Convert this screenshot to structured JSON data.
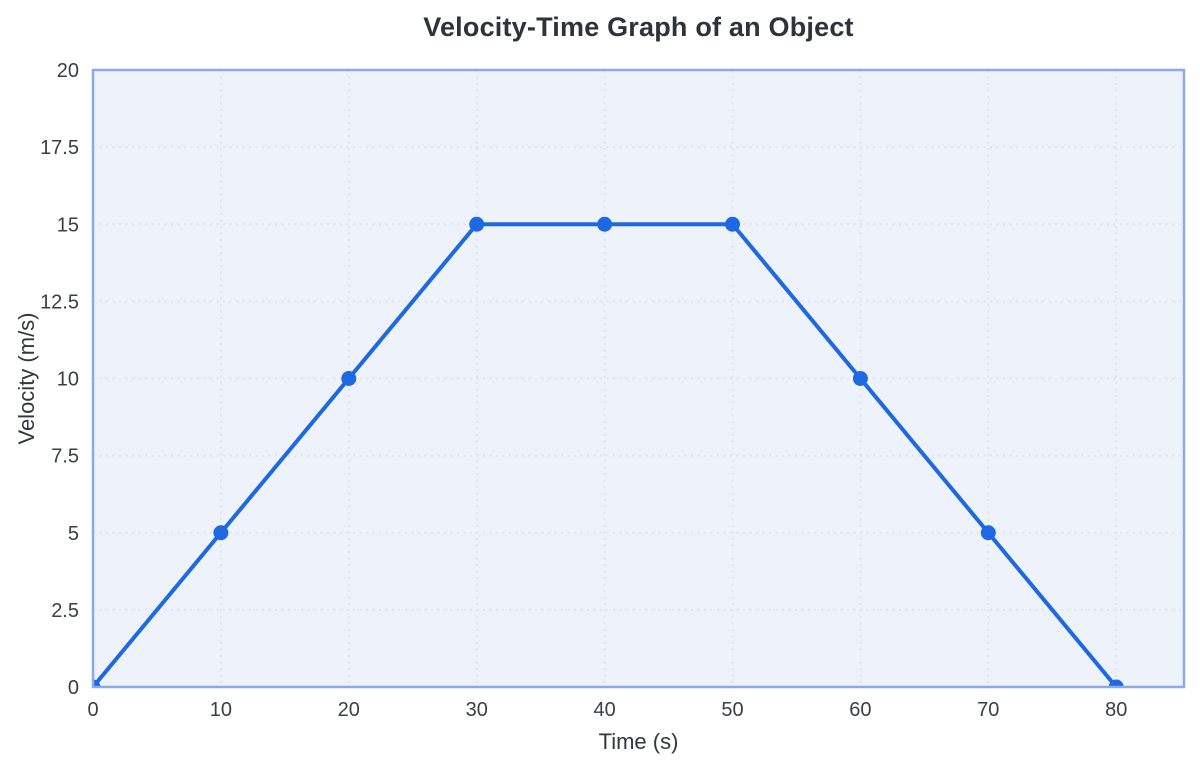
{
  "page": {
    "background": "#ffffff"
  },
  "style": {
    "line_color": "#1e69e2",
    "marker_color": "#1e69e2",
    "plot_background": "#eef2fb",
    "grid_color": "#dfe4f3",
    "border_color": "#8caae8",
    "title_color": "#2e3239",
    "tick_label_color": "#3a3e46",
    "axis_label_color": "#32363d"
  },
  "chart_data": {
    "type": "line",
    "title": "Velocity-Time Graph of an Object",
    "xlabel": "Time (s)",
    "ylabel": "Velocity (m/s)",
    "x": [
      0,
      10,
      20,
      30,
      40,
      50,
      60,
      70,
      80
    ],
    "y": [
      0,
      5,
      10,
      15,
      15,
      15,
      10,
      5,
      0
    ],
    "xticks": [
      0,
      10,
      20,
      30,
      40,
      50,
      60,
      70,
      80
    ],
    "yticks": [
      0,
      2.5,
      5,
      7.5,
      10,
      12.5,
      15,
      17.5,
      20
    ],
    "xlim": [
      0,
      85.3
    ],
    "ylim": [
      0,
      20
    ],
    "grid": "dotted",
    "legend": false,
    "marker": "circle"
  }
}
